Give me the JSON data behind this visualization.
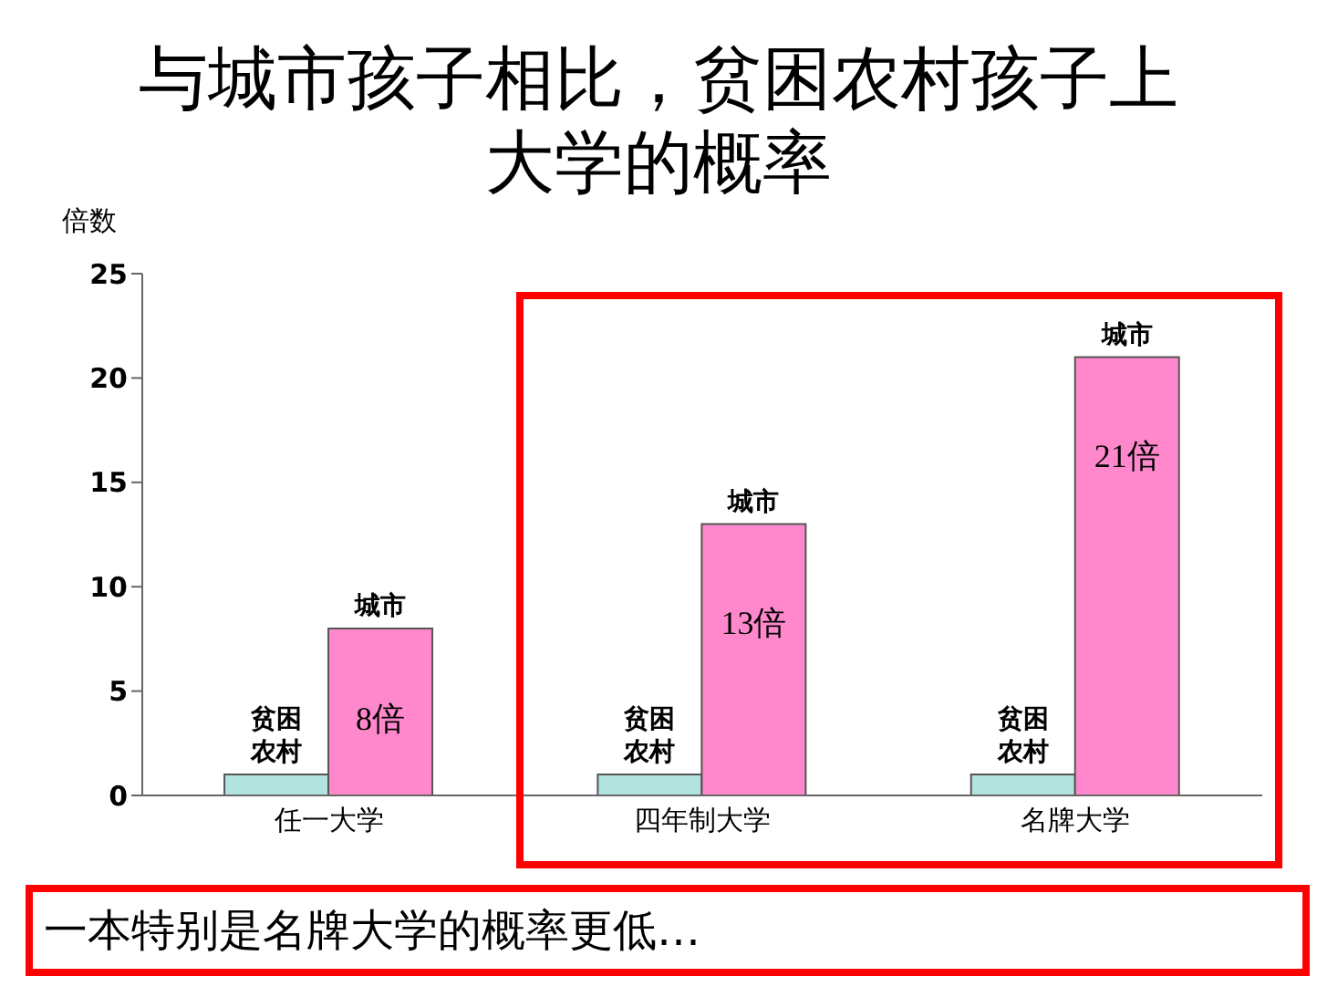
{
  "chart_data": {
    "type": "bar",
    "title": "与城市孩子相比，贫困农村孩子上大学的概率",
    "ylabel": "倍数",
    "categories": [
      "任一大学",
      "四年制大学",
      "名牌大学"
    ],
    "series": [
      {
        "name": "贫困农村",
        "color": "#b3e3de",
        "values": [
          1,
          1,
          1
        ]
      },
      {
        "name": "城市",
        "color": "#ff88cc",
        "values": [
          8,
          13,
          21
        ],
        "value_labels": [
          "8倍",
          "13倍",
          "21倍"
        ]
      }
    ],
    "ylim": [
      0,
      25
    ],
    "yticks": [
      0,
      5,
      10,
      15,
      20,
      25
    ],
    "grid": false,
    "legend": false,
    "annotations": [
      "一本特别是名牌大学的概率更低…"
    ]
  }
}
